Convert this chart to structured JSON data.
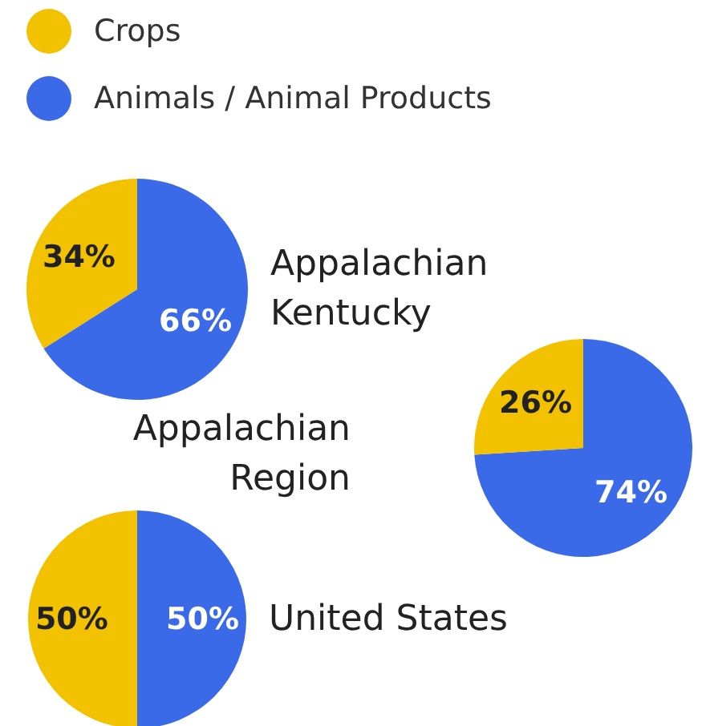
{
  "chart_data": [
    {
      "type": "pie",
      "title": "Appalachian\nKentucky",
      "categories": [
        "Crops",
        "Animals / Animal Products"
      ],
      "values": [
        34,
        66
      ],
      "colors": [
        "#f2c200",
        "#3b6ae8"
      ],
      "value_labels": [
        "34%",
        "66%"
      ],
      "legend": "top"
    },
    {
      "type": "pie",
      "title": "Appalachian\nRegion",
      "categories": [
        null,
        null
      ],
      "values": [
        26,
        74
      ],
      "colors": [
        "#f2c200",
        "#3b6ae8"
      ],
      "value_labels": [
        "26%",
        "74%"
      ]
    },
    {
      "type": "pie",
      "title": "United States",
      "categories": [
        null,
        null
      ],
      "values": [
        50,
        50
      ],
      "colors": [
        "#f2c200",
        "#3b6ae8"
      ],
      "value_labels": [
        "50%",
        "50%"
      ]
    }
  ]
}
